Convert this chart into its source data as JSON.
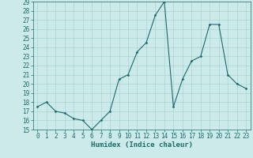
{
  "x": [
    0,
    1,
    2,
    3,
    4,
    5,
    6,
    7,
    8,
    9,
    10,
    11,
    12,
    13,
    14,
    15,
    16,
    17,
    18,
    19,
    20,
    21,
    22,
    23
  ],
  "y": [
    17.5,
    18.0,
    17.0,
    16.8,
    16.2,
    16.0,
    15.0,
    16.0,
    17.0,
    20.5,
    21.0,
    23.5,
    24.5,
    27.5,
    29.0,
    17.5,
    20.5,
    22.5,
    23.0,
    26.5,
    26.5,
    21.0,
    20.0,
    19.5
  ],
  "xlim": [
    -0.5,
    23.5
  ],
  "ylim": [
    15,
    29
  ],
  "yticks": [
    15,
    16,
    17,
    18,
    19,
    20,
    21,
    22,
    23,
    24,
    25,
    26,
    27,
    28,
    29
  ],
  "xticks": [
    0,
    1,
    2,
    3,
    4,
    5,
    6,
    7,
    8,
    9,
    10,
    11,
    12,
    13,
    14,
    15,
    16,
    17,
    18,
    19,
    20,
    21,
    22,
    23
  ],
  "xlabel": "Humidex (Indice chaleur)",
  "line_color": "#1a6b6b",
  "marker": "D",
  "marker_size": 1.5,
  "background_color": "#cceaea",
  "grid_color": "#aad4d4",
  "xlabel_fontsize": 6.5,
  "tick_fontsize": 5.5
}
